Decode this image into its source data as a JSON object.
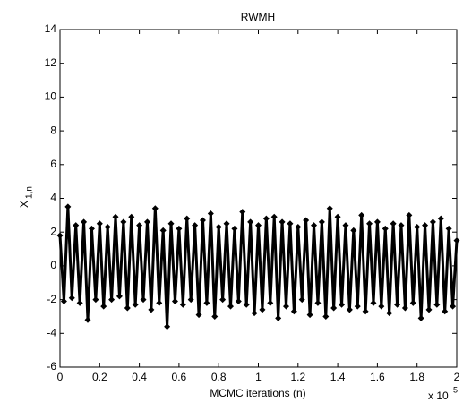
{
  "chart_data": {
    "type": "line",
    "title": "RWMH",
    "xlabel": "MCMC iterations (n)",
    "ylabel": "X",
    "ylabel_sub": "1,n",
    "x_multiplier": "x 10",
    "x_multiplier_exp": "5",
    "xlim": [
      0,
      2
    ],
    "xticks": [
      0,
      0.2,
      0.4,
      0.6,
      0.8,
      1,
      1.2,
      1.4,
      1.6,
      1.8,
      2
    ],
    "ylim": [
      -6,
      14
    ],
    "yticks": [
      -6,
      -4,
      -2,
      0,
      2,
      4,
      6,
      8,
      10,
      12,
      14
    ],
    "series": [
      {
        "color": "#000000",
        "marker": "diamond",
        "x": [
          0,
          0.02,
          0.04,
          0.06,
          0.08,
          0.1,
          0.12,
          0.14,
          0.16,
          0.18,
          0.2,
          0.22,
          0.24,
          0.26,
          0.28,
          0.3,
          0.32,
          0.34,
          0.36,
          0.38,
          0.4,
          0.42,
          0.44,
          0.46,
          0.48,
          0.5,
          0.52,
          0.54,
          0.56,
          0.58,
          0.6,
          0.62,
          0.64,
          0.66,
          0.68,
          0.7,
          0.72,
          0.74,
          0.76,
          0.78,
          0.8,
          0.82,
          0.84,
          0.86,
          0.88,
          0.9,
          0.92,
          0.94,
          0.96,
          0.98,
          1,
          1.02,
          1.04,
          1.06,
          1.08,
          1.1,
          1.12,
          1.14,
          1.16,
          1.18,
          1.2,
          1.22,
          1.24,
          1.26,
          1.28,
          1.3,
          1.32,
          1.34,
          1.36,
          1.38,
          1.4,
          1.42,
          1.44,
          1.46,
          1.48,
          1.5,
          1.52,
          1.54,
          1.56,
          1.58,
          1.6,
          1.62,
          1.64,
          1.66,
          1.68,
          1.7,
          1.72,
          1.74,
          1.76,
          1.78,
          1.8,
          1.82,
          1.84,
          1.86,
          1.88,
          1.9,
          1.92,
          1.94,
          1.96,
          1.98,
          2
        ],
        "values": [
          1.8,
          -2.1,
          3.5,
          -1.9,
          2.4,
          -2.2,
          2.6,
          -3.2,
          2.2,
          -2.0,
          2.5,
          -2.4,
          2.3,
          -2.0,
          2.9,
          -1.8,
          2.6,
          -2.5,
          2.9,
          -2.3,
          2.4,
          -2.0,
          2.6,
          -2.6,
          3.4,
          -2.2,
          2.1,
          -3.6,
          2.5,
          -2.1,
          2.2,
          -2.3,
          2.8,
          -2.0,
          2.4,
          -2.9,
          2.7,
          -2.2,
          3.1,
          -3.0,
          2.3,
          -2.0,
          2.5,
          -2.4,
          2.2,
          -2.1,
          3.2,
          -2.3,
          2.6,
          -2.8,
          2.4,
          -2.6,
          2.8,
          -2.2,
          2.9,
          -3.1,
          2.6,
          -2.4,
          2.5,
          -2.7,
          2.3,
          -2.0,
          2.7,
          -2.9,
          2.4,
          -2.2,
          2.6,
          -3.0,
          3.4,
          -2.5,
          2.9,
          -2.3,
          2.4,
          -2.6,
          2.1,
          -2.4,
          3.0,
          -2.7,
          2.5,
          -2.2,
          2.6,
          -2.4,
          2.2,
          -2.8,
          2.5,
          -2.3,
          2.4,
          -2.5,
          3.0,
          -2.2,
          2.3,
          -3.1,
          2.4,
          -2.6,
          2.6,
          -2.3,
          2.8,
          -2.7,
          2.2,
          -2.4,
          1.5
        ]
      }
    ]
  }
}
